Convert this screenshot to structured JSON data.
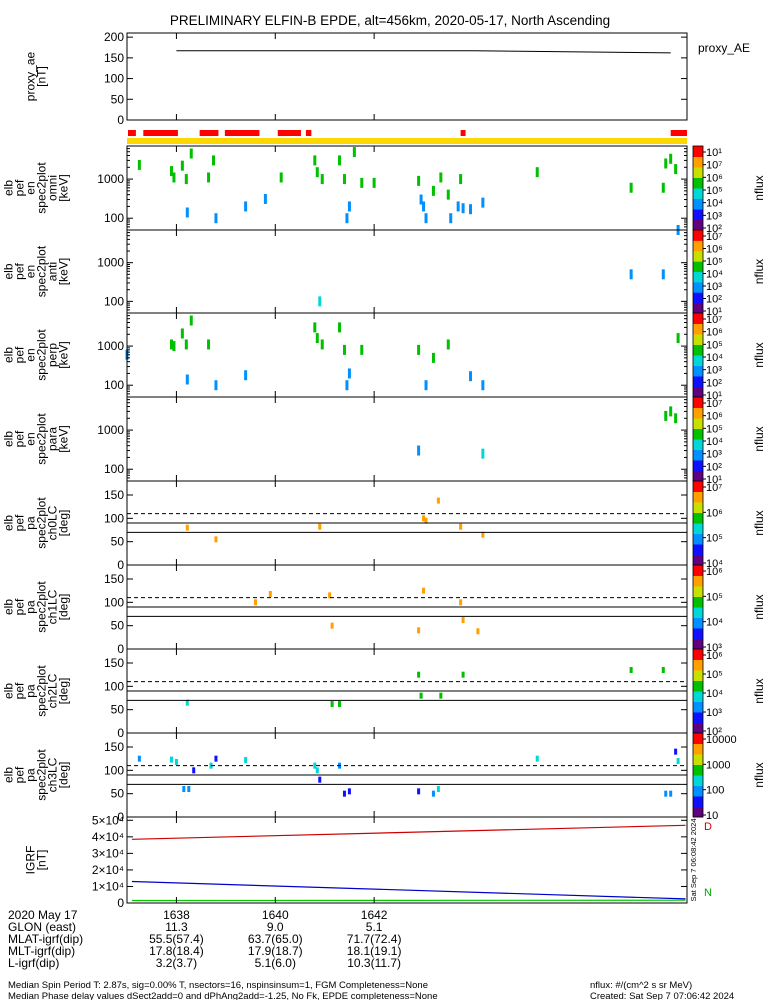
{
  "title": "PRELIMINARY ELFIN-B EPDE, alt=456km, 2020-05-17, North Ascending",
  "colors": {
    "bar_red": "#ff0000",
    "bar_yellow": "#ffd700",
    "igrf_x": "#cc0000",
    "igrf_y": "#00cc00",
    "igrf_z": "#0000cc"
  },
  "chart_data": [
    {
      "id": "proxy_ae",
      "type": "line",
      "ylabel_lines": [
        "proxy_ae",
        "[nT]"
      ],
      "legend": "proxy_AE",
      "yticks": [
        "0",
        "50",
        "100",
        "150",
        "200"
      ],
      "ylim": [
        0,
        210
      ],
      "x": [
        16.38,
        16.44,
        16.48
      ],
      "values": [
        167,
        167,
        162
      ]
    },
    {
      "id": "en_omni",
      "type": "heatmap",
      "ylabel_lines": [
        "elb",
        "pef",
        "en",
        "spec2plot",
        "omni",
        "[keV]"
      ],
      "yticks": [
        "100",
        "1000"
      ],
      "cbar_label": "nflux",
      "cells": [
        [
          16.3725,
          2300,
          4
        ],
        [
          16.379,
          1600,
          4
        ],
        [
          16.3795,
          1100,
          4
        ],
        [
          16.3812,
          2200,
          4
        ],
        [
          16.382,
          1000,
          4
        ],
        [
          16.383,
          4500,
          4
        ],
        [
          16.3822,
          140,
          2
        ],
        [
          16.3865,
          1100,
          4
        ],
        [
          16.3875,
          3000,
          4
        ],
        [
          16.388,
          100,
          2
        ],
        [
          16.394,
          200,
          2
        ],
        [
          16.398,
          310,
          2
        ],
        [
          16.4012,
          1100,
          4
        ],
        [
          16.408,
          3000,
          4
        ],
        [
          16.4085,
          1500,
          4
        ],
        [
          16.4095,
          1000,
          4
        ],
        [
          16.413,
          3000,
          4
        ],
        [
          16.414,
          1000,
          4
        ],
        [
          16.4145,
          100,
          2
        ],
        [
          16.415,
          200,
          2
        ],
        [
          16.416,
          4900,
          4
        ],
        [
          16.4175,
          800,
          4
        ],
        [
          16.42,
          800,
          4
        ],
        [
          16.429,
          900,
          4
        ],
        [
          16.4295,
          300,
          2
        ],
        [
          16.43,
          200,
          2
        ],
        [
          16.4305,
          100,
          2
        ],
        [
          16.432,
          500,
          4
        ],
        [
          16.4335,
          1100,
          4
        ],
        [
          16.435,
          400,
          4
        ],
        [
          16.4355,
          100,
          2
        ],
        [
          16.4375,
          1000,
          4
        ],
        [
          16.437,
          200,
          2
        ],
        [
          16.438,
          180,
          2
        ],
        [
          16.4395,
          170,
          2
        ],
        [
          16.442,
          250,
          2
        ],
        [
          16.453,
          1500,
          4
        ],
        [
          16.472,
          600,
          4
        ],
        [
          16.4785,
          600,
          4
        ],
        [
          16.479,
          2500,
          4
        ],
        [
          16.48,
          3300,
          4
        ],
        [
          16.481,
          1800,
          4
        ],
        [
          16.4815,
          50,
          2
        ]
      ]
    },
    {
      "id": "en_anti",
      "type": "heatmap",
      "ylabel_lines": [
        "elb",
        "pef",
        "en",
        "spec2plot",
        "anti",
        "[keV]"
      ],
      "yticks": [
        "100",
        "1000"
      ],
      "cbar_label": "nflux",
      "cells": [
        [
          16.409,
          100,
          3
        ],
        [
          16.472,
          500,
          2
        ],
        [
          16.4785,
          500,
          2
        ]
      ]
    },
    {
      "id": "en_perp",
      "type": "heatmap",
      "ylabel_lines": [
        "elb",
        "pef",
        "en",
        "spec2plot",
        "perp",
        "[keV]"
      ],
      "yticks": [
        "100",
        "1000"
      ],
      "cbar_label": "nflux",
      "cells": [
        [
          16.37,
          600,
          2
        ],
        [
          16.379,
          1100,
          4
        ],
        [
          16.3795,
          1000,
          4
        ],
        [
          16.3812,
          2100,
          4
        ],
        [
          16.382,
          1100,
          4
        ],
        [
          16.383,
          4500,
          4
        ],
        [
          16.3822,
          140,
          2
        ],
        [
          16.388,
          100,
          2
        ],
        [
          16.3865,
          1100,
          4
        ],
        [
          16.394,
          180,
          2
        ],
        [
          16.408,
          3000,
          4
        ],
        [
          16.4085,
          1600,
          4
        ],
        [
          16.4095,
          1100,
          4
        ],
        [
          16.413,
          3000,
          4
        ],
        [
          16.414,
          800,
          4
        ],
        [
          16.4145,
          100,
          2
        ],
        [
          16.415,
          200,
          2
        ],
        [
          16.4175,
          800,
          4
        ],
        [
          16.429,
          800,
          4
        ],
        [
          16.4305,
          100,
          2
        ],
        [
          16.432,
          500,
          4
        ],
        [
          16.435,
          1100,
          4
        ],
        [
          16.4395,
          170,
          2
        ],
        [
          16.442,
          100,
          2
        ],
        [
          16.4815,
          1600,
          4
        ]
      ]
    },
    {
      "id": "en_para",
      "type": "heatmap",
      "ylabel_lines": [
        "elb",
        "pef",
        "en",
        "spec2plot",
        "para",
        "[keV]"
      ],
      "yticks": [
        "100",
        "1000"
      ],
      "cbar_label": "nflux",
      "cells": [
        [
          16.429,
          300,
          2
        ],
        [
          16.442,
          250,
          3
        ],
        [
          16.479,
          2300,
          4
        ],
        [
          16.48,
          3000,
          4
        ],
        [
          16.481,
          2000,
          4
        ]
      ]
    },
    {
      "id": "pa_ch0LC",
      "type": "heatmap",
      "ylabel_lines": [
        "elb",
        "pef",
        "pa",
        "spec2plot",
        "ch0LC",
        "[deg]"
      ],
      "yticks": [
        "0",
        "50",
        "100",
        "150"
      ],
      "ylim": [
        0,
        180
      ],
      "cbar_label": "nflux",
      "dashed_y": 110,
      "solid_y": [
        90,
        70
      ],
      "cells": [
        [
          16.3822,
          80,
          6
        ],
        [
          16.388,
          55,
          6
        ],
        [
          16.409,
          82,
          6
        ],
        [
          16.43,
          100,
          6
        ],
        [
          16.4305,
          95,
          6
        ],
        [
          16.433,
          138,
          6
        ],
        [
          16.4375,
          82,
          6
        ],
        [
          16.442,
          65,
          6
        ]
      ]
    },
    {
      "id": "pa_ch1LC",
      "type": "heatmap",
      "ylabel_lines": [
        "elb",
        "pef",
        "pa",
        "spec2plot",
        "ch1LC",
        "[deg]"
      ],
      "yticks": [
        "0",
        "50",
        "100",
        "150"
      ],
      "ylim": [
        0,
        180
      ],
      "cbar_label": "nflux",
      "dashed_y": 110,
      "solid_y": [
        90,
        70
      ],
      "cells": [
        [
          16.396,
          100,
          6
        ],
        [
          16.399,
          118,
          6
        ],
        [
          16.411,
          115,
          6
        ],
        [
          16.4115,
          50,
          6
        ],
        [
          16.429,
          40,
          6
        ],
        [
          16.43,
          125,
          6
        ],
        [
          16.4375,
          100,
          6
        ],
        [
          16.438,
          62,
          6
        ],
        [
          16.441,
          38,
          6
        ]
      ]
    },
    {
      "id": "pa_ch2LC",
      "type": "heatmap",
      "ylabel_lines": [
        "elb",
        "pef",
        "pa",
        "spec2plot",
        "ch2LC",
        "[deg]"
      ],
      "yticks": [
        "0",
        "50",
        "100",
        "150"
      ],
      "ylim": [
        0,
        180
      ],
      "cbar_label": "nflux",
      "dashed_y": 110,
      "solid_y": [
        90,
        70
      ],
      "cells": [
        [
          16.3822,
          65,
          3
        ],
        [
          16.4115,
          62,
          4
        ],
        [
          16.413,
          62,
          4
        ],
        [
          16.429,
          125,
          4
        ],
        [
          16.4295,
          80,
          4
        ],
        [
          16.4335,
          80,
          4
        ],
        [
          16.438,
          125,
          4
        ],
        [
          16.472,
          135,
          4
        ],
        [
          16.4785,
          135,
          4
        ]
      ]
    },
    {
      "id": "pa_ch3LC",
      "type": "heatmap",
      "ylabel_lines": [
        "elb",
        "pef",
        "pa",
        "spec2plot",
        "ch3LC",
        "[deg]"
      ],
      "yticks": [
        "0",
        "50",
        "100",
        "150"
      ],
      "ylim": [
        0,
        180
      ],
      "cbar_label": "nflux",
      "dashed_y": 110,
      "solid_y": [
        90,
        70
      ],
      "cells": [
        [
          16.3725,
          125,
          2
        ],
        [
          16.379,
          123,
          3
        ],
        [
          16.38,
          118,
          3
        ],
        [
          16.3815,
          60,
          2
        ],
        [
          16.3825,
          60,
          2
        ],
        [
          16.3835,
          100,
          1
        ],
        [
          16.387,
          110,
          3
        ],
        [
          16.388,
          125,
          1
        ],
        [
          16.394,
          122,
          3
        ],
        [
          16.408,
          110,
          3
        ],
        [
          16.4085,
          100,
          3
        ],
        [
          16.409,
          80,
          1
        ],
        [
          16.413,
          110,
          2
        ],
        [
          16.414,
          50,
          1
        ],
        [
          16.415,
          55,
          1
        ],
        [
          16.429,
          55,
          1
        ],
        [
          16.432,
          50,
          2
        ],
        [
          16.433,
          60,
          3
        ],
        [
          16.453,
          125,
          3
        ],
        [
          16.479,
          50,
          2
        ],
        [
          16.48,
          50,
          2
        ],
        [
          16.481,
          140,
          1
        ],
        [
          16.4815,
          120,
          3
        ]
      ]
    },
    {
      "id": "igrf",
      "type": "line",
      "ylabel_lines": [
        "IGRF",
        "[nT]"
      ],
      "yticks": [
        "0",
        "1×10⁴",
        "2×10⁴",
        "3×10⁴",
        "4×10⁴",
        "5×10⁴"
      ],
      "ylim": [
        0,
        52000
      ],
      "x": [
        16.371,
        16.483
      ],
      "series": [
        {
          "values": [
            38500,
            47000
          ]
        },
        {
          "values": [
            1500,
            1700
          ]
        },
        {
          "values": [
            13000,
            2500
          ]
        }
      ]
    }
  ],
  "colorbars": [
    {
      "labels": [
        "10²",
        "10³",
        "10⁴",
        "10⁵",
        "10⁶",
        "10⁷",
        "10¹"
      ],
      "label": "nflux"
    },
    {
      "labels": [
        "10¹",
        "10²",
        "10³",
        "10⁴",
        "10⁵",
        "10⁶",
        "10⁷"
      ],
      "label": "nflux"
    },
    {
      "labels": [
        "10¹",
        "10²",
        "10³",
        "10⁴",
        "10⁵",
        "10⁶",
        "10⁷"
      ],
      "label": "nflux"
    },
    {
      "labels": [
        "10¹",
        "10²",
        "10³",
        "10⁴",
        "10⁵",
        "10⁶",
        "10⁷"
      ],
      "label": "nflux"
    },
    {
      "labels": [
        "10⁴",
        "10⁵",
        "10⁶",
        "10⁷"
      ],
      "label": "nflux"
    },
    {
      "labels": [
        "10³",
        "10⁴",
        "10⁵",
        "10⁶"
      ],
      "label": "nflux"
    },
    {
      "labels": [
        "10²",
        "10³",
        "10⁴",
        "10⁵",
        "10⁶"
      ],
      "label": "nflux"
    },
    {
      "labels": [
        "10",
        "100",
        "1000",
        "10000"
      ],
      "label": "nflux"
    }
  ],
  "x_axis": {
    "ticks": [
      "1638",
      "1640",
      "1642"
    ],
    "tick_values": [
      16.38,
      16.4,
      16.42
    ],
    "xlim": [
      16.37,
      16.4833
    ]
  },
  "top_bars": {
    "red_segments": [
      [
        16.3702,
        16.3718
      ],
      [
        16.3733,
        16.3803
      ],
      [
        16.3847,
        16.3885
      ],
      [
        16.3898,
        16.3968
      ],
      [
        16.4005,
        16.4052
      ],
      [
        16.4062,
        16.4073
      ],
      [
        16.4375,
        16.4385
      ],
      [
        16.48,
        16.4833
      ]
    ]
  },
  "igrf_tags": {
    "top": "D",
    "bottom": "N"
  },
  "vertical_stamp": "Sat Sep  7 06:08:42 2024",
  "ephemeris": {
    "date_label": "2020 May 17",
    "rows": [
      {
        "label": "GLON (east)",
        "vals": [
          "11.3",
          "9.0",
          "5.1"
        ]
      },
      {
        "label": "MLAT-igrf(dip)",
        "vals": [
          "55.5(57.4)",
          "63.7(65.0)",
          "71.7(72.4)"
        ]
      },
      {
        "label": "MLT-igrf(dip)",
        "vals": [
          "17.8(18.4)",
          "17.9(18.7)",
          "18.1(19.1)"
        ]
      },
      {
        "label": "L-igrf(dip)",
        "vals": [
          "3.2(3.7)",
          "5.1(6.0)",
          "10.3(11.7)"
        ]
      }
    ]
  },
  "footer": {
    "line1": "Median Spin Period T: 2.87s, sig=0.00% T, nsectors=16, nspinsinsum=1, FGM Completeness=None",
    "line2": "Median Phase delay values dSect2add=0 and dPhAng2add=-1.25, No Fk, EPDE completeness=None",
    "right1": "nflux: #/(cm^2 s sr MeV)",
    "right2": "Created: Sat Sep  7 07:06:42 2024"
  }
}
